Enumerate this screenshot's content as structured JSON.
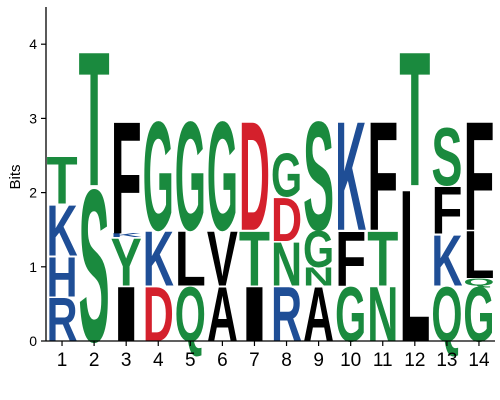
{
  "chart_data": {
    "type": "sequence-logo",
    "title": "",
    "xlabel": "",
    "ylabel": "Bits",
    "ylim": [
      0,
      4.5
    ],
    "yticks": [
      0,
      1,
      2,
      3,
      4
    ],
    "positions": [
      "1",
      "2",
      "3",
      "4",
      "5",
      "6",
      "7",
      "8",
      "9",
      "10",
      "11",
      "12",
      "13",
      "14"
    ],
    "colors": {
      "A": "#000000",
      "C": "#000000",
      "D": "#d4202c",
      "E": "#d4202c",
      "F": "#000000",
      "G": "#1a8a3e",
      "H": "#1f4e96",
      "I": "#000000",
      "K": "#1f4e96",
      "L": "#000000",
      "M": "#000000",
      "N": "#1a8a3e",
      "P": "#000000",
      "Q": "#1a8a3e",
      "R": "#1f4e96",
      "S": "#1a8a3e",
      "T": "#1a8a3e",
      "V": "#000000",
      "W": "#000000",
      "Y": "#1a8a3e"
    },
    "stacks": [
      [
        {
          "letter": "R",
          "height": 0.6
        },
        {
          "letter": "H",
          "height": 0.55
        },
        {
          "letter": "K",
          "height": 0.7
        },
        {
          "letter": "T",
          "height": 0.65
        }
      ],
      [
        {
          "letter": "S",
          "height": 2.1
        },
        {
          "letter": "T",
          "height": 1.85
        }
      ],
      [
        {
          "letter": "I",
          "height": 0.75
        },
        {
          "letter": "Y",
          "height": 0.65
        },
        {
          "letter": "K",
          "height": 0.05
        },
        {
          "letter": "F",
          "height": 1.55
        }
      ],
      [
        {
          "letter": "D",
          "height": 0.75
        },
        {
          "letter": "K",
          "height": 0.75
        },
        {
          "letter": "G",
          "height": 1.5
        }
      ],
      [
        {
          "letter": "Q",
          "height": 0.75
        },
        {
          "letter": "L",
          "height": 0.75
        },
        {
          "letter": "G",
          "height": 1.5
        }
      ],
      [
        {
          "letter": "A",
          "height": 0.75
        },
        {
          "letter": "V",
          "height": 0.75
        },
        {
          "letter": "G",
          "height": 1.5
        }
      ],
      [
        {
          "letter": "I",
          "height": 0.75
        },
        {
          "letter": "T",
          "height": 0.75
        },
        {
          "letter": "D",
          "height": 1.5
        }
      ],
      [
        {
          "letter": "R",
          "height": 0.75
        },
        {
          "letter": "N",
          "height": 0.6
        },
        {
          "letter": "D",
          "height": 0.6
        },
        {
          "letter": "G",
          "height": 0.6
        }
      ],
      [
        {
          "letter": "A",
          "height": 0.75
        },
        {
          "letter": "N",
          "height": 0.25
        },
        {
          "letter": "G",
          "height": 0.5
        },
        {
          "letter": "S",
          "height": 1.5
        }
      ],
      [
        {
          "letter": "G",
          "height": 0.75
        },
        {
          "letter": "F",
          "height": 0.75
        },
        {
          "letter": "K",
          "height": 1.5
        }
      ],
      [
        {
          "letter": "N",
          "height": 0.75
        },
        {
          "letter": "T",
          "height": 0.75
        },
        {
          "letter": "F",
          "height": 1.5
        }
      ],
      [
        {
          "letter": "L",
          "height": 2.1
        },
        {
          "letter": "T",
          "height": 1.85
        }
      ],
      [
        {
          "letter": "Q",
          "height": 0.75
        },
        {
          "letter": "K",
          "height": 0.7
        },
        {
          "letter": "F",
          "height": 0.65
        },
        {
          "letter": "S",
          "height": 0.8
        }
      ],
      [
        {
          "letter": "G",
          "height": 0.75
        },
        {
          "letter": "Q",
          "height": 0.1
        },
        {
          "letter": "L",
          "height": 0.65
        },
        {
          "letter": "F",
          "height": 1.5
        }
      ]
    ]
  }
}
